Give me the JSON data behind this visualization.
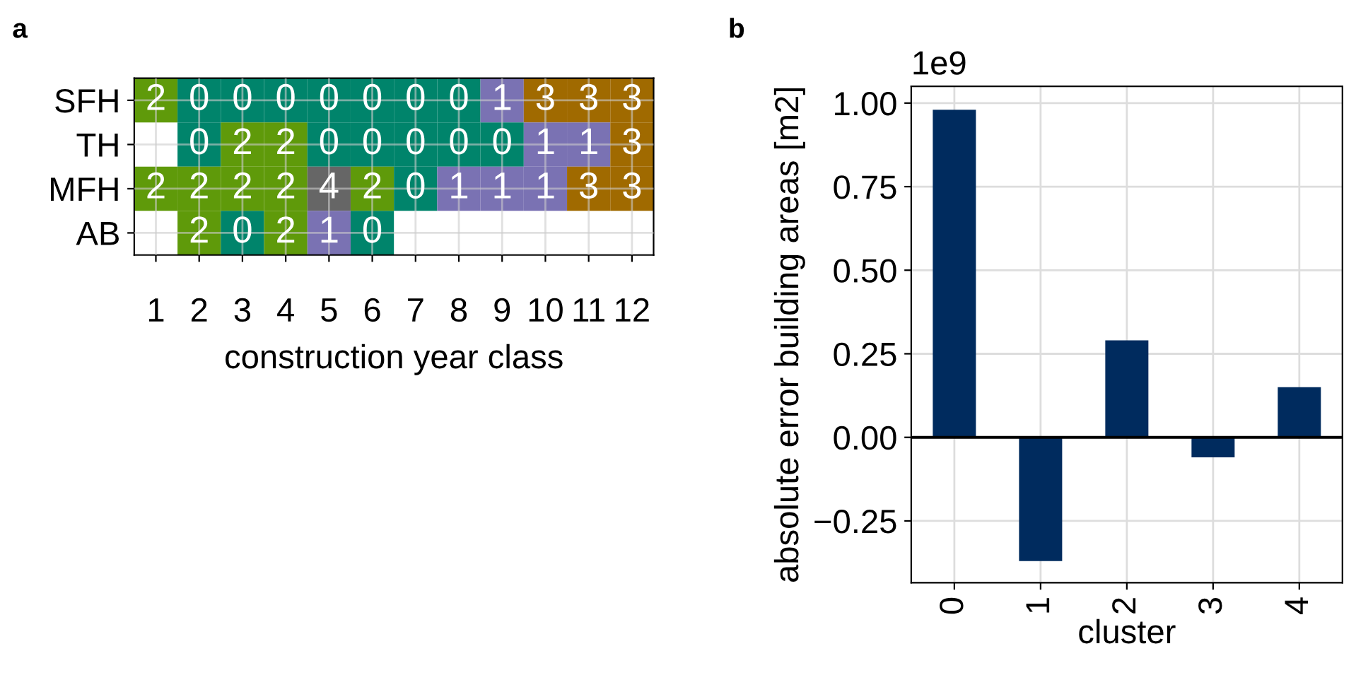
{
  "chart_data": [
    {
      "type": "heatmap",
      "xlabel": "construction year class",
      "annotations": [
        "a"
      ],
      "categories": [
        "1",
        "2",
        "3",
        "4",
        "5",
        "6",
        "7",
        "8",
        "9",
        "10",
        "11",
        "12"
      ],
      "y_categories": [
        "SFH",
        "TH",
        "MFH",
        "AB"
      ],
      "cells": [
        [
          2,
          0,
          0,
          0,
          0,
          0,
          0,
          0,
          1,
          3,
          3,
          3
        ],
        [
          null,
          0,
          2,
          2,
          0,
          0,
          0,
          0,
          0,
          1,
          1,
          3
        ],
        [
          2,
          2,
          2,
          2,
          4,
          2,
          0,
          1,
          1,
          1,
          3,
          3
        ],
        [
          null,
          2,
          0,
          2,
          1,
          0,
          null,
          null,
          null,
          null,
          null,
          null
        ]
      ],
      "colors": [
        "#00846b",
        "#7a72b3",
        "#5f9a0a",
        "#a06a00",
        "#666666"
      ],
      "data_labels": true,
      "grid": true
    },
    {
      "type": "bar",
      "xlabel": "cluster",
      "ylabel": "absolute error building areas [m2]",
      "annotations": [
        "b",
        "1e9"
      ],
      "categories": [
        "0",
        "1",
        "2",
        "3",
        "4"
      ],
      "values": [
        0.98,
        -0.37,
        0.29,
        -0.06,
        0.15
      ],
      "color": "#002b5e",
      "ylim": [
        -0.435,
        1.05
      ],
      "yticks": [
        {
          "value": -0.25,
          "label": "−0.25"
        },
        {
          "value": 0,
          "label": "0.00"
        },
        {
          "value": 0.25,
          "label": "0.25"
        },
        {
          "value": 0.5,
          "label": "0.50"
        },
        {
          "value": 0.75,
          "label": "0.75"
        },
        {
          "value": 1,
          "label": "1.00"
        }
      ],
      "ref_lines": [
        {
          "axis": "y",
          "value": 0,
          "color": "#000000"
        }
      ],
      "grid": true
    }
  ]
}
